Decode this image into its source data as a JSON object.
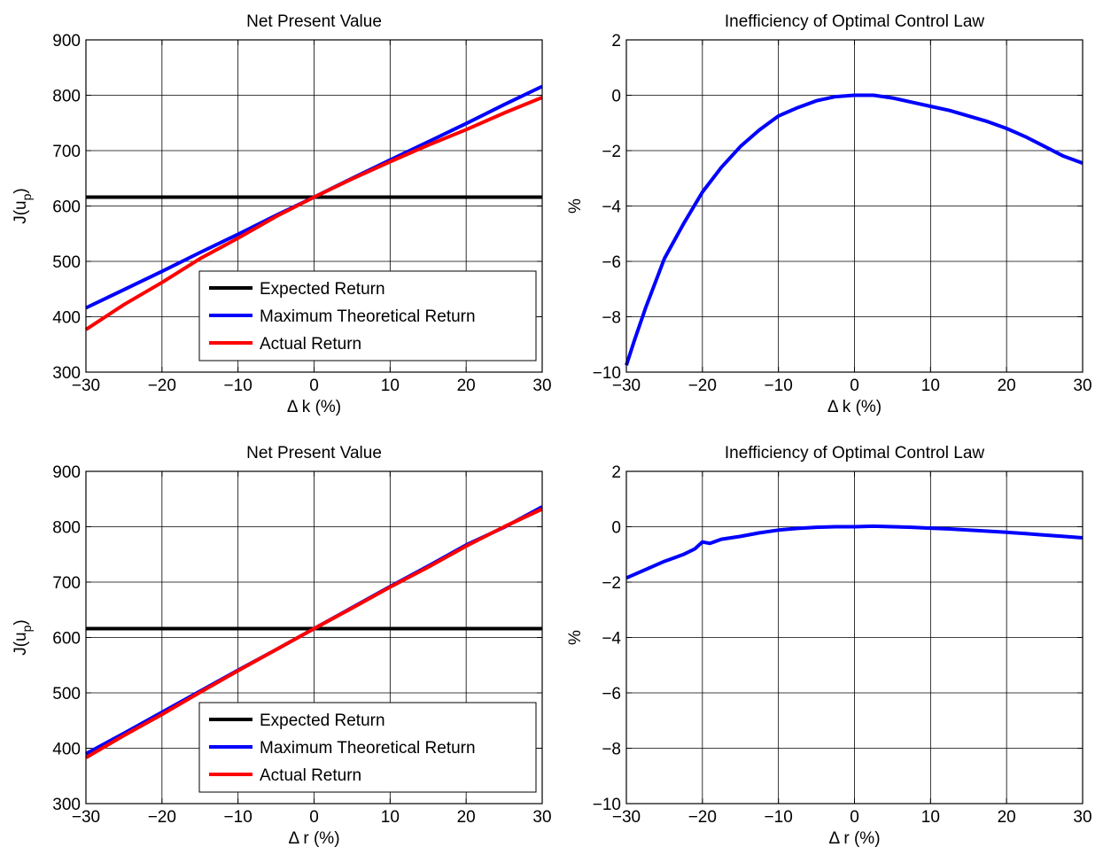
{
  "chart_data": [
    {
      "type": "line",
      "title": "Net Present Value",
      "xlabel": "Δ k (%)",
      "ylabel": "J(u_p)",
      "ylabel_main": "J(u",
      "ylabel_sub": "p",
      "ylabel_close": ")",
      "xlim": [
        -30,
        30
      ],
      "ylim": [
        300,
        900
      ],
      "xticks": [
        -30,
        -20,
        -10,
        0,
        10,
        20,
        30
      ],
      "yticks": [
        300,
        400,
        500,
        600,
        700,
        800,
        900
      ],
      "xtick_labels": [
        "−30",
        "−20",
        "−10",
        "0",
        "10",
        "20",
        "30"
      ],
      "ytick_labels": [
        "300",
        "400",
        "500",
        "600",
        "700",
        "800",
        "900"
      ],
      "grid": true,
      "legend_position": "bottom-right",
      "series": [
        {
          "name": "Expected Return",
          "color": "#000000",
          "x": [
            -30,
            30
          ],
          "y": [
            616,
            616
          ]
        },
        {
          "name": "Maximum Theoretical Return",
          "color": "#0000ff",
          "x": [
            -30,
            -25,
            -20,
            -15,
            -10,
            -5,
            0,
            5,
            10,
            15,
            20,
            25,
            30
          ],
          "y": [
            416,
            449,
            482,
            516,
            549,
            583,
            616,
            650,
            683,
            716,
            749,
            783,
            816
          ]
        },
        {
          "name": "Actual Return",
          "color": "#ff0000",
          "x": [
            -30,
            -25,
            -20,
            -15,
            -10,
            -5,
            0,
            5,
            10,
            15,
            20,
            25,
            30
          ],
          "y": [
            377,
            422,
            462,
            505,
            542,
            581,
            616,
            649,
            680,
            710,
            738,
            768,
            796
          ]
        }
      ]
    },
    {
      "type": "line",
      "title": "Inefficiency of Optimal Control Law",
      "xlabel": "Δ k (%)",
      "ylabel": "%",
      "xlim": [
        -30,
        30
      ],
      "ylim": [
        -10,
        2
      ],
      "xticks": [
        -30,
        -20,
        -10,
        0,
        10,
        20,
        30
      ],
      "yticks": [
        -10,
        -8,
        -6,
        -4,
        -2,
        0,
        2
      ],
      "xtick_labels": [
        "−30",
        "−20",
        "−10",
        "0",
        "10",
        "20",
        "30"
      ],
      "ytick_labels": [
        "−10",
        "−8",
        "−6",
        "−4",
        "−2",
        "0",
        "2"
      ],
      "grid": true,
      "series": [
        {
          "name": "",
          "color": "#0000ff",
          "x": [
            -30,
            -29,
            -27.5,
            -25,
            -22.5,
            -20,
            -17.5,
            -15,
            -12.5,
            -10,
            -7.5,
            -5,
            -2.5,
            0,
            2.5,
            5,
            7.5,
            10,
            12.5,
            15,
            17.5,
            20,
            22.5,
            25,
            27.5,
            30
          ],
          "y": [
            -9.75,
            -8.9,
            -7.7,
            -5.9,
            -4.65,
            -3.5,
            -2.6,
            -1.85,
            -1.25,
            -0.75,
            -0.45,
            -0.2,
            -0.05,
            0,
            0,
            -0.1,
            -0.25,
            -0.4,
            -0.55,
            -0.75,
            -0.95,
            -1.2,
            -1.5,
            -1.85,
            -2.2,
            -2.45
          ]
        }
      ]
    },
    {
      "type": "line",
      "title": "Net Present Value",
      "xlabel": "Δ r (%)",
      "ylabel": "J(u_p)",
      "ylabel_main": "J(u",
      "ylabel_sub": "p",
      "ylabel_close": ")",
      "xlim": [
        -30,
        30
      ],
      "ylim": [
        300,
        900
      ],
      "xticks": [
        -30,
        -20,
        -10,
        0,
        10,
        20,
        30
      ],
      "yticks": [
        300,
        400,
        500,
        600,
        700,
        800,
        900
      ],
      "xtick_labels": [
        "−30",
        "−20",
        "−10",
        "0",
        "10",
        "20",
        "30"
      ],
      "ytick_labels": [
        "300",
        "400",
        "500",
        "600",
        "700",
        "800",
        "900"
      ],
      "grid": true,
      "legend_position": "bottom-right",
      "series": [
        {
          "name": "Expected Return",
          "color": "#000000",
          "x": [
            -30,
            30
          ],
          "y": [
            616,
            616
          ]
        },
        {
          "name": "Maximum Theoretical Return",
          "color": "#0000ff",
          "x": [
            -30,
            -25,
            -20,
            -15,
            -10,
            -5,
            0,
            5,
            10,
            15,
            20,
            25,
            30
          ],
          "y": [
            390,
            427,
            465,
            503,
            541,
            578,
            616,
            654,
            692,
            729,
            767,
            799,
            836
          ]
        },
        {
          "name": "Actual Return",
          "color": "#ff0000",
          "x": [
            -30,
            -25,
            -20,
            -15,
            -10,
            -5,
            0,
            5,
            10,
            15,
            20,
            25,
            30
          ],
          "y": [
            383,
            423,
            461,
            501,
            540,
            578,
            616,
            653,
            691,
            727,
            765,
            800,
            832
          ]
        }
      ]
    },
    {
      "type": "line",
      "title": "Inefficiency of Optimal Control Law",
      "xlabel": "Δ r (%)",
      "ylabel": "%",
      "xlim": [
        -30,
        30
      ],
      "ylim": [
        -10,
        2
      ],
      "xticks": [
        -30,
        -20,
        -10,
        0,
        10,
        20,
        30
      ],
      "yticks": [
        -10,
        -8,
        -6,
        -4,
        -2,
        0,
        2
      ],
      "xtick_labels": [
        "−30",
        "−20",
        "−10",
        "0",
        "10",
        "20",
        "30"
      ],
      "ytick_labels": [
        "−10",
        "−8",
        "−6",
        "−4",
        "−2",
        "0",
        "2"
      ],
      "grid": true,
      "series": [
        {
          "name": "",
          "color": "#0000ff",
          "x": [
            -30,
            -27.5,
            -25,
            -22.5,
            -21,
            -20,
            -19,
            -17.5,
            -15,
            -12.5,
            -10,
            -7.5,
            -5,
            -2.5,
            0,
            2.5,
            5,
            7.5,
            10,
            12.5,
            15,
            17.5,
            20,
            22.5,
            25,
            27.5,
            30
          ],
          "y": [
            -1.85,
            -1.55,
            -1.25,
            -1.0,
            -0.8,
            -0.55,
            -0.6,
            -0.45,
            -0.35,
            -0.22,
            -0.12,
            -0.06,
            -0.02,
            0,
            0,
            0.02,
            0,
            -0.02,
            -0.05,
            -0.08,
            -0.12,
            -0.16,
            -0.2,
            -0.25,
            -0.3,
            -0.35,
            -0.4
          ]
        }
      ]
    }
  ]
}
